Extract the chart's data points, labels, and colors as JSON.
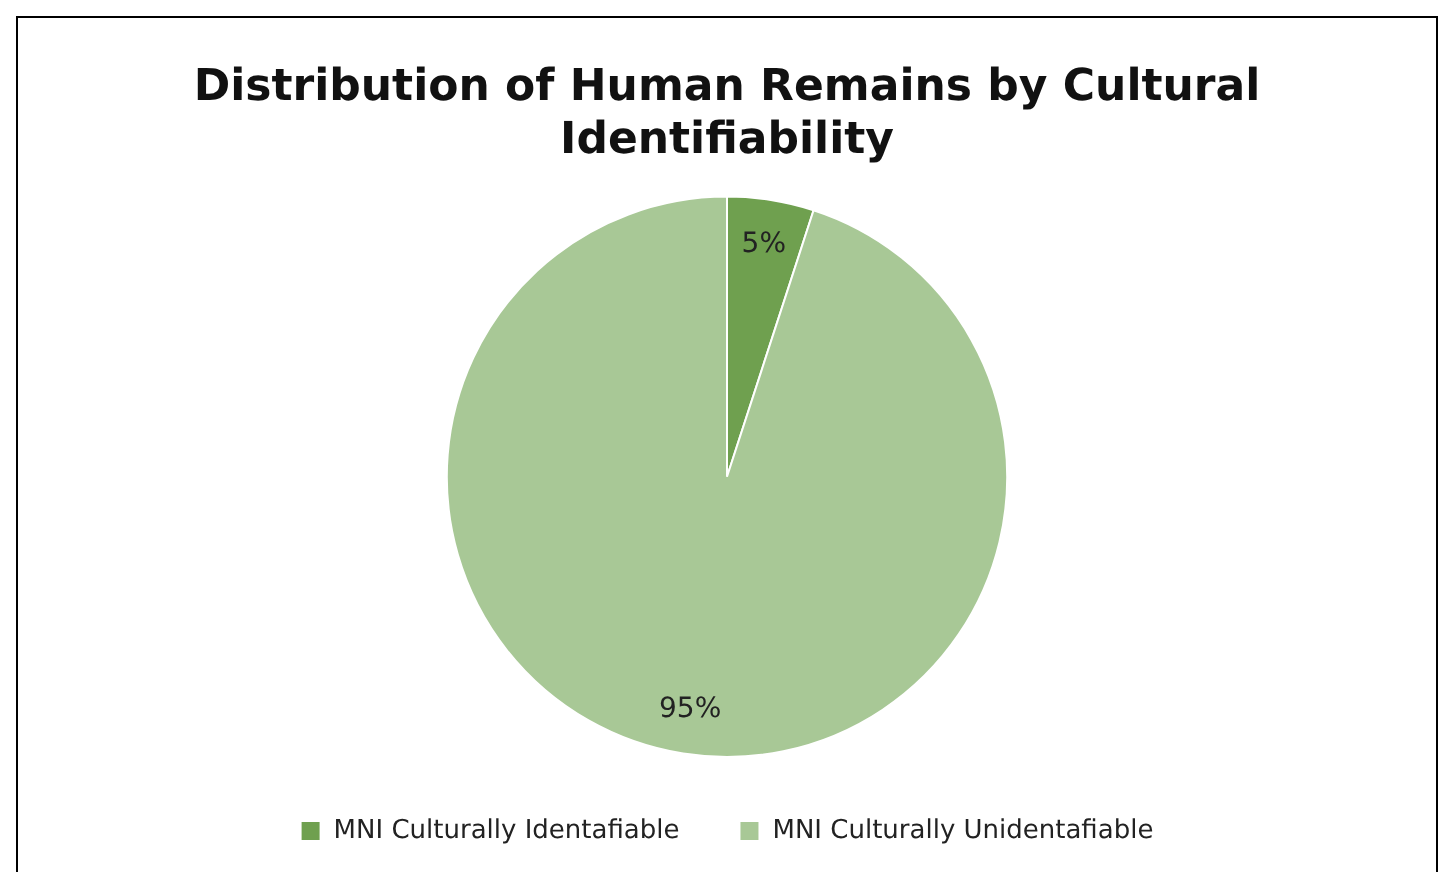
{
  "chart_data": {
    "type": "pie",
    "title": "Distribution of Human Remains by Cultural Identifiability",
    "categories": [
      "MNI Culturally Identafiable",
      "MNI Culturally Unidentafiable"
    ],
    "values": [
      5,
      95
    ],
    "colors": [
      "#6fa04f",
      "#a8c896"
    ],
    "value_labels": [
      "5%",
      "95%"
    ],
    "legend": "bottom"
  }
}
